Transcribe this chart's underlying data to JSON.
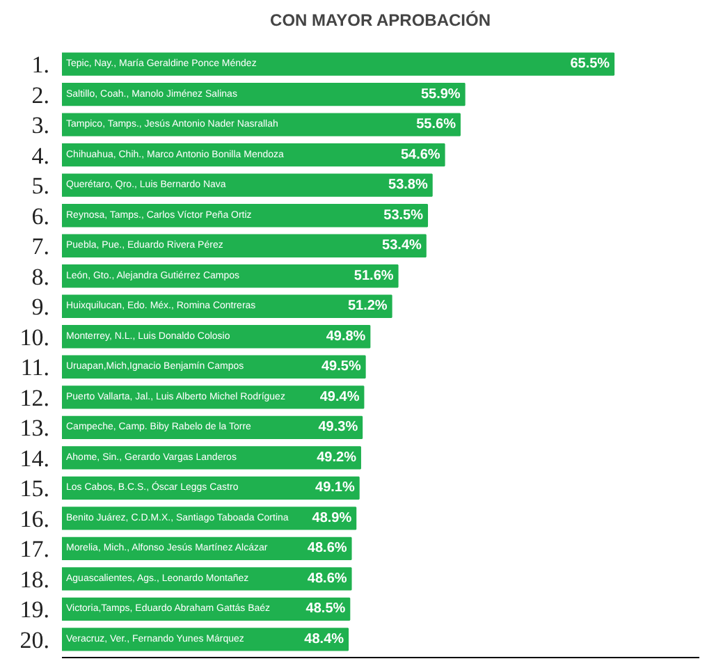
{
  "chart_data": {
    "type": "bar",
    "orientation": "horizontal",
    "title": "CON MAYOR APROBACIÓN",
    "categories": [
      "Tepic, Nay., María Geraldine Ponce Méndez",
      "Saltillo, Coah., Manolo Jiménez Salinas",
      "Tampico, Tamps., Jesús Antonio Nader Nasrallah",
      "Chihuahua, Chih., Marco Antonio Bonilla Mendoza",
      "Querétaro, Qro., Luis Bernardo Nava",
      "Reynosa, Tamps., Carlos Víctor Peña Ortiz",
      "Puebla, Pue., Eduardo Rivera Pérez",
      "León, Gto., Alejandra Gutiérrez Campos",
      "Huixquilucan, Edo. Méx., Romina Contreras",
      "Monterrey, N.L., Luis Donaldo Colosio",
      "Uruapan,Mich,Ignacio Benjamín Campos",
      "Puerto Vallarta, Jal., Luis Alberto Michel Rodríguez",
      "Campeche, Camp. Biby Rabelo de la Torre",
      "Ahome, Sin., Gerardo Vargas Landeros",
      "Los Cabos, B.C.S., Óscar Leggs  Castro",
      "Benito Juárez, C.D.M.X., Santiago Taboada Cortina",
      "Morelia, Mich., Alfonso Jesús Martínez Alcázar",
      "Aguascalientes, Ags., Leonardo Montañez",
      "Victoria,Tamps, Eduardo Abraham Gattás Baéz",
      "Veracruz, Ver., Fernando Yunes Márquez"
    ],
    "values": [
      65.5,
      55.9,
      55.6,
      54.6,
      53.8,
      53.5,
      53.4,
      51.6,
      51.2,
      49.8,
      49.5,
      49.4,
      49.3,
      49.2,
      49.1,
      48.9,
      48.6,
      48.6,
      48.5,
      48.4
    ],
    "value_labels": [
      "65.5%",
      "55.9%",
      "55.6%",
      "54.6%",
      "53.8%",
      "53.5%",
      "53.4%",
      "51.6%",
      "51.2%",
      "49.8%",
      "49.5%",
      "49.4%",
      "49.3%",
      "49.2%",
      "49.1%",
      "48.9%",
      "48.6%",
      "48.6%",
      "48.5%",
      "48.4%"
    ],
    "color": "#1fb14f",
    "xlim": [
      30,
      71
    ],
    "tick_labels": false,
    "grid": false,
    "annotations": [
      "1.",
      "2.",
      "3.",
      "4.",
      "5.",
      "6.",
      "7.",
      "8.",
      "9.",
      "10.",
      "11.",
      "12.",
      "13.",
      "14.",
      "15.",
      "16.",
      "17.",
      "18.",
      "19.",
      "20."
    ]
  }
}
